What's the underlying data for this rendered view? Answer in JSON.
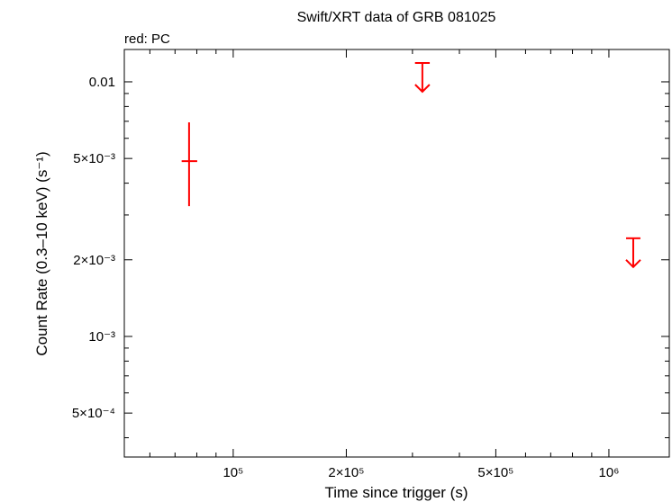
{
  "chart_data": {
    "type": "scatter",
    "title": "Swift/XRT data of GRB 081025",
    "legend_label": "red: PC",
    "xlabel": "Time since trigger (s)",
    "ylabel": "Count Rate (0.3–10 keV) (s⁻¹)",
    "log_x": true,
    "log_y": true,
    "xlim": [
      51300,
      1448000
    ],
    "ylim": [
      0.000336,
      0.0134
    ],
    "xticks": [
      {
        "value": 100000,
        "label": "10⁵"
      },
      {
        "value": 200000,
        "label": "2×10⁵"
      },
      {
        "value": 500000,
        "label": "5×10⁵"
      },
      {
        "value": 1000000,
        "label": "10⁶"
      }
    ],
    "xminorticks": [
      60000,
      70000,
      80000,
      90000,
      300000,
      400000,
      600000,
      700000,
      800000,
      900000
    ],
    "yticks": [
      {
        "value": 0.0005,
        "label": "5×10⁻⁴"
      },
      {
        "value": 0.001,
        "label": "10⁻³"
      },
      {
        "value": 0.002,
        "label": "2×10⁻³"
      },
      {
        "value": 0.005,
        "label": "5×10⁻³"
      },
      0.01
    ],
    "yminorticks": [
      0.0004,
      0.0006,
      0.0007,
      0.0008,
      0.0009,
      0.003,
      0.004,
      0.006,
      0.007,
      0.008,
      0.009
    ],
    "color": "#ff0000",
    "points": {
      "x": [
        76300
      ],
      "x_lo": [
        72900
      ],
      "x_hi": [
        80200
      ],
      "y": [
        0.00488
      ],
      "y_lo": [
        0.00325
      ],
      "y_hi": [
        0.00693
      ]
    },
    "upper_limits": {
      "x": [
        318800,
        1161000
      ],
      "x_lo": [
        304700,
        1111000
      ],
      "x_hi": [
        333500,
        1213000
      ],
      "y": [
        0.01186,
        0.00243
      ]
    }
  }
}
